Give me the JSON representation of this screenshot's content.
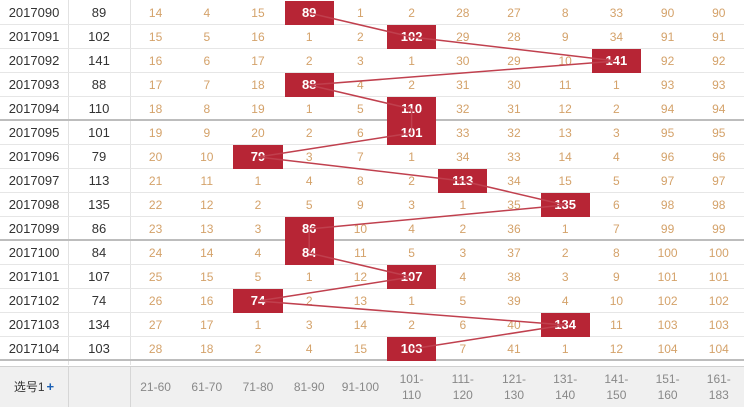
{
  "chart_data": {
    "type": "table",
    "rows": [
      {
        "period": "2017090",
        "value": 89,
        "cells": [
          "14",
          "4",
          "15",
          "89",
          "1",
          "2",
          "28",
          "27",
          "8",
          "33",
          "90",
          "90"
        ]
      },
      {
        "period": "2017091",
        "value": 102,
        "cells": [
          "15",
          "5",
          "16",
          "1",
          "2",
          "102",
          "29",
          "28",
          "9",
          "34",
          "91",
          "91"
        ]
      },
      {
        "period": "2017092",
        "value": 141,
        "cells": [
          "16",
          "6",
          "17",
          "2",
          "3",
          "1",
          "30",
          "29",
          "10",
          "141",
          "92",
          "92"
        ]
      },
      {
        "period": "2017093",
        "value": 88,
        "cells": [
          "17",
          "7",
          "18",
          "88",
          "4",
          "2",
          "31",
          "30",
          "11",
          "1",
          "93",
          "93"
        ]
      },
      {
        "period": "2017094",
        "value": 110,
        "cells": [
          "18",
          "8",
          "19",
          "1",
          "5",
          "110",
          "32",
          "31",
          "12",
          "2",
          "94",
          "94"
        ]
      },
      {
        "period": "2017095",
        "value": 101,
        "cells": [
          "19",
          "9",
          "20",
          "2",
          "6",
          "101",
          "33",
          "32",
          "13",
          "3",
          "95",
          "95"
        ]
      },
      {
        "period": "2017096",
        "value": 79,
        "cells": [
          "20",
          "10",
          "79",
          "3",
          "7",
          "1",
          "34",
          "33",
          "14",
          "4",
          "96",
          "96"
        ]
      },
      {
        "period": "2017097",
        "value": 113,
        "cells": [
          "21",
          "11",
          "1",
          "4",
          "8",
          "2",
          "113",
          "34",
          "15",
          "5",
          "97",
          "97"
        ]
      },
      {
        "period": "2017098",
        "value": 135,
        "cells": [
          "22",
          "12",
          "2",
          "5",
          "9",
          "3",
          "1",
          "35",
          "135",
          "6",
          "98",
          "98"
        ]
      },
      {
        "period": "2017099",
        "value": 86,
        "cells": [
          "23",
          "13",
          "3",
          "86",
          "10",
          "4",
          "2",
          "36",
          "1",
          "7",
          "99",
          "99"
        ]
      },
      {
        "period": "2017100",
        "value": 84,
        "cells": [
          "24",
          "14",
          "4",
          "84",
          "11",
          "5",
          "3",
          "37",
          "2",
          "8",
          "100",
          "100"
        ]
      },
      {
        "period": "2017101",
        "value": 107,
        "cells": [
          "25",
          "15",
          "5",
          "1",
          "12",
          "107",
          "4",
          "38",
          "3",
          "9",
          "101",
          "101"
        ]
      },
      {
        "period": "2017102",
        "value": 74,
        "cells": [
          "26",
          "16",
          "74",
          "2",
          "13",
          "1",
          "5",
          "39",
          "4",
          "10",
          "102",
          "102"
        ]
      },
      {
        "period": "2017103",
        "value": 134,
        "cells": [
          "27",
          "17",
          "1",
          "3",
          "14",
          "2",
          "6",
          "40",
          "134",
          "11",
          "103",
          "103"
        ]
      },
      {
        "period": "2017104",
        "value": 103,
        "cells": [
          "28",
          "18",
          "2",
          "4",
          "15",
          "103",
          "7",
          "41",
          "1",
          "12",
          "104",
          "104"
        ]
      }
    ],
    "hit_column": [
      3,
      5,
      9,
      3,
      5,
      5,
      2,
      6,
      8,
      3,
      3,
      5,
      2,
      8,
      5
    ]
  },
  "footer": {
    "select_label": "选号1",
    "plus": "+",
    "ranges": [
      "21-60",
      "61-70",
      "71-80",
      "81-90",
      "91-100",
      "101-\n110",
      "111-\n120",
      "121-\n130",
      "131-\n140",
      "141-\n150",
      "151-\n160",
      "161-\n183"
    ]
  },
  "colors": {
    "hit_bg": "#b72535",
    "line": "#c0404e",
    "miss_text": "#d4a26a"
  }
}
